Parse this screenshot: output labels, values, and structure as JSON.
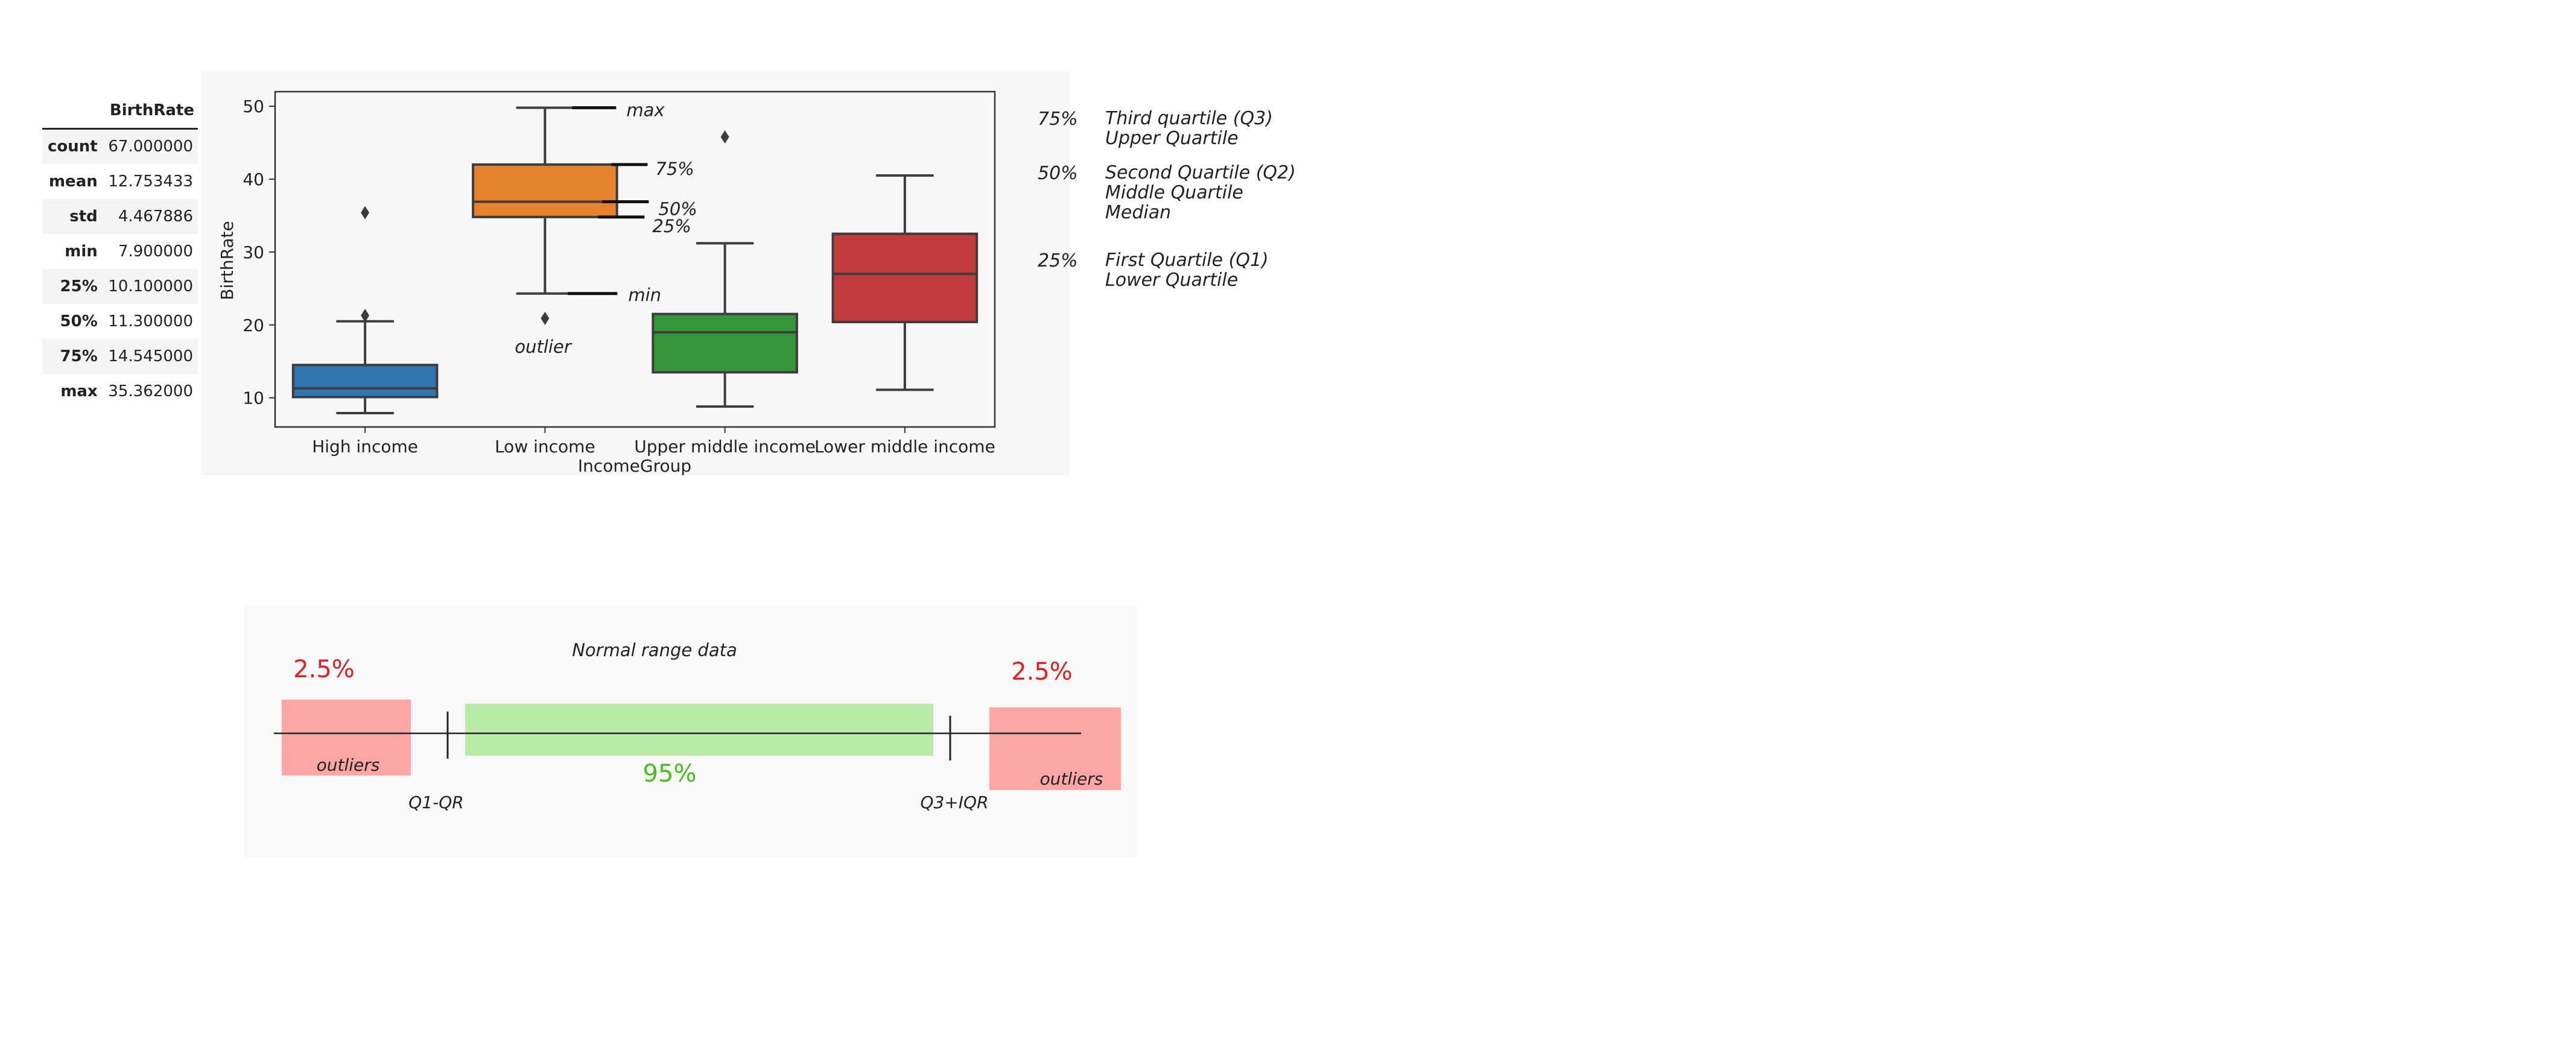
{
  "stats_table": {
    "header": "BirthRate",
    "rows": [
      {
        "label": "count",
        "value": "67.000000"
      },
      {
        "label": "mean",
        "value": "12.753433"
      },
      {
        "label": "std",
        "value": "4.467886"
      },
      {
        "label": "min",
        "value": "7.900000"
      },
      {
        "label": "25%",
        "value": "10.100000"
      },
      {
        "label": "50%",
        "value": "11.300000"
      },
      {
        "label": "75%",
        "value": "14.545000"
      },
      {
        "label": "max",
        "value": "35.362000"
      }
    ]
  },
  "chart_data": {
    "type": "box",
    "title": "",
    "xlabel": "IncomeGroup",
    "ylabel": "BirthRate",
    "ylim": [
      6,
      52
    ],
    "yticks": [
      10,
      20,
      30,
      40,
      50
    ],
    "grid": false,
    "categories": [
      "High income",
      "Low income",
      "Upper middle income",
      "Lower middle income"
    ],
    "series": [
      {
        "category": "High income",
        "color": "#2f76b3",
        "whisker_low": 7.9,
        "q1": 10.1,
        "median": 11.3,
        "q3": 14.5,
        "whisker_high": 20.5,
        "outliers": [
          21.3,
          35.4
        ]
      },
      {
        "category": "Low income",
        "color": "#e6822b",
        "whisker_low": 24.3,
        "q1": 34.8,
        "median": 36.9,
        "q3": 42.0,
        "whisker_high": 49.8,
        "outliers": [
          20.9
        ]
      },
      {
        "category": "Upper middle income",
        "color": "#33973a",
        "whisker_low": 8.8,
        "q1": 13.5,
        "median": 19.0,
        "q3": 21.5,
        "whisker_high": 31.2,
        "outliers": [
          45.8
        ]
      },
      {
        "category": "Lower middle income",
        "color": "#c33b3f",
        "whisker_low": 11.1,
        "q1": 20.4,
        "median": 27.0,
        "q3": 32.5,
        "whisker_high": 40.5,
        "outliers": []
      }
    ],
    "annotations": {
      "max": "max",
      "q3": "75%",
      "median": "50%",
      "q1": "25%",
      "min": "min",
      "outlier": "outlier"
    }
  },
  "legend": [
    {
      "pct": "75%",
      "lines": [
        "Third quartile (Q3)",
        "Upper Quartile"
      ]
    },
    {
      "pct": "50%",
      "lines": [
        "Second Quartile (Q2)",
        "Middle Quartile",
        "Median"
      ]
    },
    {
      "pct": "25%",
      "lines": [
        "First Quartile (Q1)",
        "Lower Quartile"
      ]
    }
  ],
  "range_diagram": {
    "title": "Normal range data",
    "left_pct": "2.5%",
    "right_pct": "2.5%",
    "middle_pct": "95%",
    "left_label": "outliers",
    "right_label": "outliers",
    "lower_bound": "Q1-QR",
    "upper_bound": "Q3+IQR",
    "colors": {
      "outlier": "#fca6a6",
      "normal": "#b8eca6",
      "pct_red": "#e02020",
      "pct_green": "#44c018"
    }
  }
}
